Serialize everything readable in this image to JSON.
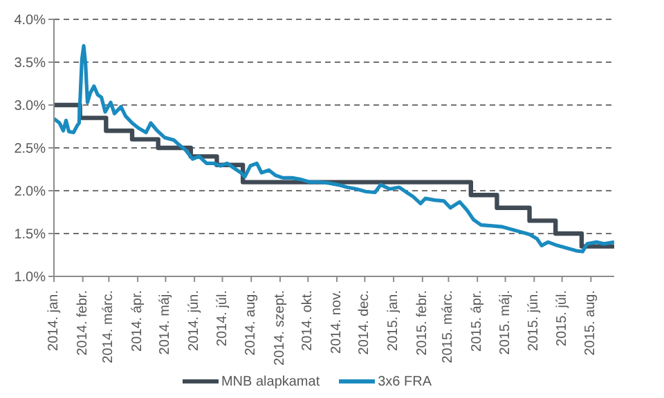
{
  "chart_data": {
    "type": "line",
    "xlim": [
      "2014-01-01",
      "2015-08-26"
    ],
    "xticks": [
      {
        "value": "2014-01-01",
        "label": "2014. jan."
      },
      {
        "value": "2014-02-01",
        "label": "2014. febr."
      },
      {
        "value": "2014-03-01",
        "label": "2014. márc."
      },
      {
        "value": "2014-04-01",
        "label": "2014. ápr."
      },
      {
        "value": "2014-05-01",
        "label": "2014. máj."
      },
      {
        "value": "2014-06-01",
        "label": "2014. jún."
      },
      {
        "value": "2014-07-01",
        "label": "2014. júl."
      },
      {
        "value": "2014-08-01",
        "label": "2014. aug."
      },
      {
        "value": "2014-09-01",
        "label": "2014. szept."
      },
      {
        "value": "2014-10-01",
        "label": "2014. okt."
      },
      {
        "value": "2014-11-01",
        "label": "2014. nov."
      },
      {
        "value": "2014-12-01",
        "label": "2014. dec."
      },
      {
        "value": "2015-01-01",
        "label": "2015. jan."
      },
      {
        "value": "2015-02-01",
        "label": "2015. febr."
      },
      {
        "value": "2015-03-01",
        "label": "2015. márc."
      },
      {
        "value": "2015-04-01",
        "label": "2015. ápr."
      },
      {
        "value": "2015-05-01",
        "label": "2015. máj."
      },
      {
        "value": "2015-06-01",
        "label": "2015. jún."
      },
      {
        "value": "2015-07-01",
        "label": "2015. júl."
      },
      {
        "value": "2015-08-01",
        "label": "2015. aug."
      }
    ],
    "ylim": [
      1.0,
      4.0
    ],
    "yticks": [
      {
        "value": 1.0,
        "label": "1.0%"
      },
      {
        "value": 1.5,
        "label": "1.5%"
      },
      {
        "value": 2.0,
        "label": "2.0%"
      },
      {
        "value": 2.5,
        "label": "2.5%"
      },
      {
        "value": 3.0,
        "label": "3.0%"
      },
      {
        "value": 3.5,
        "label": "3.5%"
      },
      {
        "value": 4.0,
        "label": "4.0%"
      }
    ],
    "grid": "y",
    "legend": "bottom",
    "marker": "none",
    "line_style": "solid",
    "series": [
      {
        "name": "MNB alapkamat",
        "type": "step",
        "color": "#3f4a54",
        "x": [
          "2014-01-01",
          "2014-01-29",
          "2014-02-26",
          "2014-03-26",
          "2014-04-23",
          "2014-05-28",
          "2014-06-25",
          "2014-07-23",
          "2015-03-25",
          "2015-04-22",
          "2015-05-27",
          "2015-06-24",
          "2015-07-22",
          "2015-08-26"
        ],
        "values": [
          3.0,
          2.85,
          2.7,
          2.6,
          2.5,
          2.4,
          2.3,
          2.1,
          1.95,
          1.8,
          1.65,
          1.5,
          1.35,
          1.35
        ]
      },
      {
        "name": "3x6 FRA",
        "color": "#1a8bbf",
        "x": [
          "2014-01-01",
          "2014-01-07",
          "2014-01-11",
          "2014-01-14",
          "2014-01-17",
          "2014-01-22",
          "2014-01-26",
          "2014-01-28",
          "2014-01-31",
          "2014-02-02",
          "2014-02-04",
          "2014-02-06",
          "2014-02-09",
          "2014-02-13",
          "2014-02-17",
          "2014-02-21",
          "2014-02-25",
          "2014-03-03",
          "2014-03-07",
          "2014-03-14",
          "2014-03-19",
          "2014-03-26",
          "2014-04-02",
          "2014-04-10",
          "2014-04-15",
          "2014-04-22",
          "2014-04-30",
          "2014-05-10",
          "2014-05-15",
          "2014-05-22",
          "2014-05-30",
          "2014-06-06",
          "2014-06-14",
          "2014-06-21",
          "2014-06-29",
          "2014-07-06",
          "2014-07-14",
          "2014-07-21",
          "2014-07-25",
          "2014-07-31",
          "2014-08-07",
          "2014-08-12",
          "2014-08-20",
          "2014-08-27",
          "2014-09-04",
          "2014-09-14",
          "2014-09-24",
          "2014-10-03",
          "2014-10-13",
          "2014-10-23",
          "2014-11-02",
          "2014-11-12",
          "2014-11-22",
          "2014-12-02",
          "2014-12-12",
          "2014-12-18",
          "2014-12-28",
          "2015-01-07",
          "2015-01-15",
          "2015-01-22",
          "2015-01-30",
          "2015-02-04",
          "2015-02-14",
          "2015-02-24",
          "2015-03-03",
          "2015-03-13",
          "2015-03-21",
          "2015-03-28",
          "2015-04-05",
          "2015-04-17",
          "2015-04-27",
          "2015-05-07",
          "2015-05-17",
          "2015-05-27",
          "2015-06-04",
          "2015-06-09",
          "2015-06-16",
          "2015-06-26",
          "2015-07-06",
          "2015-07-16",
          "2015-07-23",
          "2015-07-28",
          "2015-08-07",
          "2015-08-15",
          "2015-08-26"
        ],
        "values": [
          2.84,
          2.79,
          2.7,
          2.82,
          2.69,
          2.68,
          2.76,
          2.79,
          3.53,
          3.69,
          3.47,
          3.03,
          3.14,
          3.22,
          3.12,
          3.09,
          2.92,
          3.03,
          2.9,
          2.98,
          2.87,
          2.79,
          2.73,
          2.68,
          2.79,
          2.7,
          2.62,
          2.59,
          2.54,
          2.48,
          2.37,
          2.4,
          2.32,
          2.32,
          2.29,
          2.32,
          2.26,
          2.21,
          2.16,
          2.29,
          2.32,
          2.21,
          2.24,
          2.18,
          2.15,
          2.15,
          2.13,
          2.1,
          2.1,
          2.09,
          2.07,
          2.04,
          2.02,
          1.99,
          1.98,
          2.07,
          2.02,
          2.04,
          1.98,
          1.93,
          1.85,
          1.91,
          1.89,
          1.88,
          1.8,
          1.87,
          1.77,
          1.66,
          1.6,
          1.59,
          1.58,
          1.55,
          1.52,
          1.49,
          1.44,
          1.36,
          1.4,
          1.36,
          1.33,
          1.3,
          1.29,
          1.38,
          1.4,
          1.38,
          1.4
        ]
      }
    ]
  }
}
